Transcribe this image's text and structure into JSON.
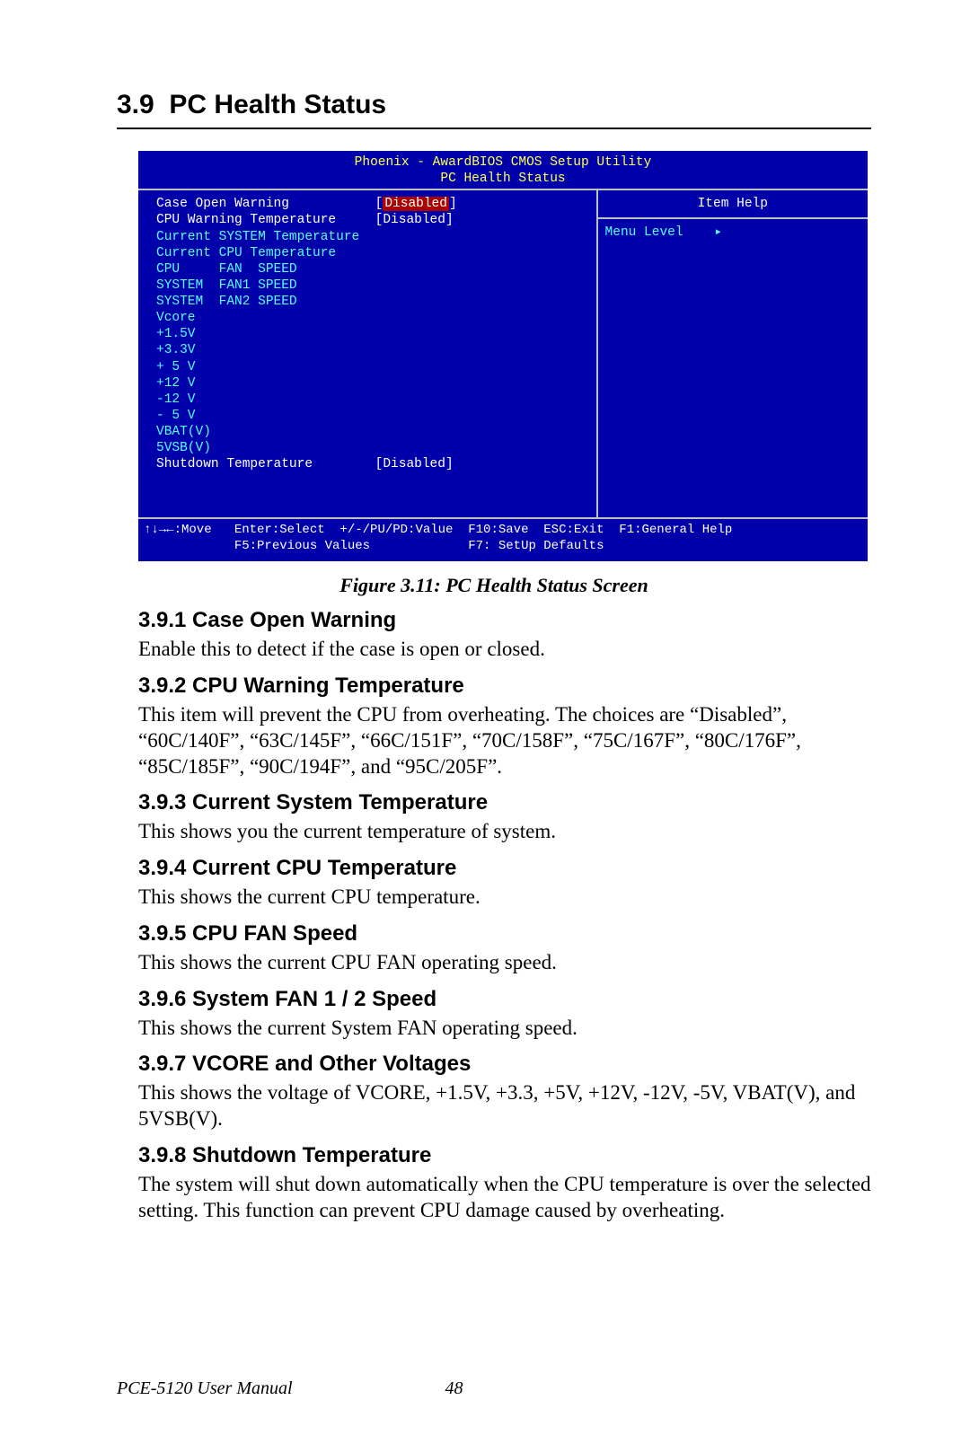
{
  "section": {
    "number": "3.9",
    "title": "PC Health Status"
  },
  "bios": {
    "header_line1": "Phoenix - AwardBIOS CMOS Setup Utility",
    "header_line2": "PC Health Status",
    "right": {
      "title": "Item Help",
      "menu_level_label": "Menu Level",
      "arrow": "▸"
    },
    "rows": [
      {
        "label": "Case Open Warning",
        "value": "Disabled",
        "color": "whtext",
        "selected": true,
        "brackets": true
      },
      {
        "label": "CPU Warning Temperature",
        "value": "Disabled",
        "color": "whtext",
        "selected": false,
        "brackets": true
      },
      {
        "label": "Current SYSTEM Temperature",
        "value": "",
        "color": "cyan"
      },
      {
        "label": "Current CPU Temperature",
        "value": "",
        "color": "cyan"
      },
      {
        "label": "CPU     FAN  SPEED",
        "value": "",
        "color": "cyan"
      },
      {
        "label": "SYSTEM  FAN1 SPEED",
        "value": "",
        "color": "cyan"
      },
      {
        "label": "SYSTEM  FAN2 SPEED",
        "value": "",
        "color": "cyan"
      },
      {
        "label": "Vcore",
        "value": "",
        "color": "cyan"
      },
      {
        "label": "+1.5V",
        "value": "",
        "color": "cyan"
      },
      {
        "label": "+3.3V",
        "value": "",
        "color": "cyan"
      },
      {
        "label": "+ 5 V",
        "value": "",
        "color": "cyan"
      },
      {
        "label": "+12 V",
        "value": "",
        "color": "cyan"
      },
      {
        "label": "-12 V",
        "value": "",
        "color": "cyan"
      },
      {
        "label": "- 5 V",
        "value": "",
        "color": "cyan"
      },
      {
        "label": "VBAT(V)",
        "value": "",
        "color": "cyan"
      },
      {
        "label": "5VSB(V)",
        "value": "",
        "color": "cyan"
      },
      {
        "label": "Shutdown Temperature",
        "value": "Disabled",
        "color": "whtext",
        "selected": false,
        "brackets": true
      }
    ],
    "footer_line1": "↑↓→←:Move   Enter:Select  +/-/PU/PD:Value  F10:Save  ESC:Exit  F1:General Help",
    "footer_line2": "            F5:Previous Values             F7: SetUp Defaults"
  },
  "caption": "Figure 3.11: PC Health Status Screen",
  "subsections": [
    {
      "title": "3.9.1 Case Open Warning",
      "body": "Enable this to detect if the case is open or closed."
    },
    {
      "title": "3.9.2 CPU Warning Temperature",
      "body": "This item will prevent the CPU from overheating. The choices are “Disabled”, “60C/140F”, “63C/145F”, “66C/151F”, “70C/158F”, “75C/167F”, “80C/176F”, “85C/185F”, “90C/194F”, and “95C/205F”."
    },
    {
      "title": "3.9.3 Current System Temperature",
      "body": "This shows you the current temperature of system."
    },
    {
      "title": "3.9.4 Current CPU Temperature",
      "body": "This shows the current CPU temperature."
    },
    {
      "title": "3.9.5 CPU FAN Speed",
      "body": "This shows the current CPU FAN operating speed."
    },
    {
      "title": "3.9.6 System FAN 1 / 2 Speed",
      "body": "This shows the current System FAN operating speed."
    },
    {
      "title": "3.9.7 VCORE and Other Voltages",
      "body": "This shows the voltage of VCORE, +1.5V, +3.3, +5V, +12V, -12V, -5V, VBAT(V), and 5VSB(V)."
    },
    {
      "title": "3.9.8 Shutdown Temperature",
      "body": "The system will shut down automatically when the CPU temperature is over the selected setting. This function can prevent CPU damage caused by overheating."
    }
  ],
  "footer": {
    "manual": "PCE-5120 User Manual",
    "page": "48"
  }
}
